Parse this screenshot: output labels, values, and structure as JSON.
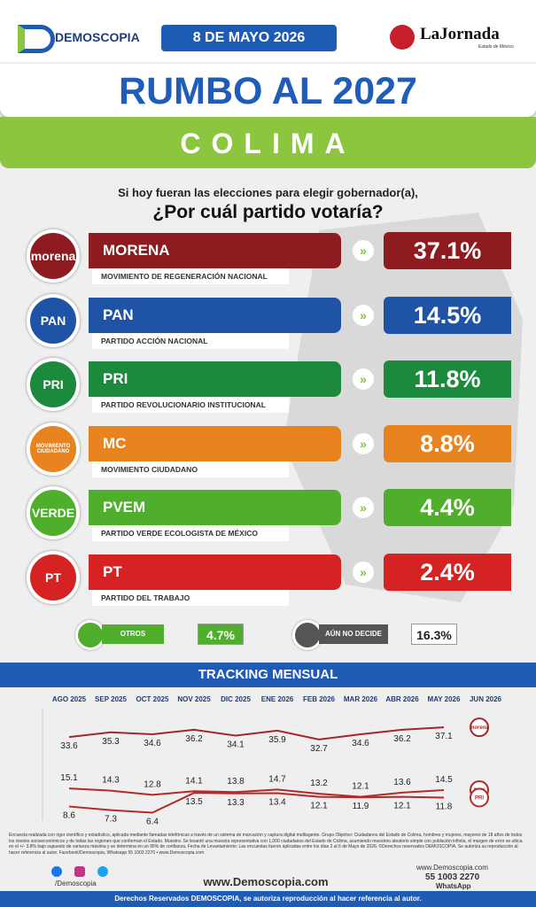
{
  "header": {
    "brand": "DEMOSCOPIA",
    "date": "8 DE MAYO 2026",
    "partner": "LaJornada",
    "partner_sub": "Estado de México",
    "title": "RUMBO AL 2027",
    "state": "COLIMA"
  },
  "question": {
    "line1": "Si hoy fueran las elecciones para elegir gobernador(a),",
    "line2": "¿Por cuál partido votaría?"
  },
  "parties": [
    {
      "logo": "morena",
      "name": "MORENA",
      "full": "MOVIMIENTO DE REGENERACIÓN NACIONAL",
      "value": 37.1,
      "value_label": "37.1%",
      "color": "#8e1b1f"
    },
    {
      "logo": "PAN",
      "name": "PAN",
      "full": "PARTIDO ACCIÓN NACIONAL",
      "value": 14.5,
      "value_label": "14.5%",
      "color": "#1f53a6"
    },
    {
      "logo": "PRI",
      "name": "PRI",
      "full": "PARTIDO REVOLUCIONARIO INSTITUCIONAL",
      "value": 11.8,
      "value_label": "11.8%",
      "color": "#1b8a3c"
    },
    {
      "logo": "MOVIMIENTO CIUDADANO",
      "name": "MC",
      "full": "MOVIMIENTO CIUDADANO",
      "value": 8.8,
      "value_label": "8.8%",
      "color": "#e8831f"
    },
    {
      "logo": "VERDE",
      "name": "PVEM",
      "full": "PARTIDO VERDE ECOLOGISTA DE MÉXICO",
      "value": 4.4,
      "value_label": "4.4%",
      "color": "#4fae2c"
    },
    {
      "logo": "PT",
      "name": "PT",
      "full": "PARTIDO DEL TRABAJO",
      "value": 2.4,
      "value_label": "2.4%",
      "color": "#d52222"
    }
  ],
  "others": [
    {
      "name": "OTROS",
      "value": 4.7,
      "value_label": "4.7%",
      "color": "#4fae2c"
    },
    {
      "name": "AÚN NO DECIDE",
      "value": 16.3,
      "value_label": "16.3%",
      "color": "#555555"
    }
  ],
  "tracking": {
    "title": "TRACKING MENSUAL",
    "categories": [
      "AGO 2025",
      "SEP 2025",
      "OCT 2025",
      "NOV 2025",
      "DIC 2025",
      "ENE 2026",
      "FEB 2026",
      "MAR 2026",
      "ABR 2026",
      "MAY 2026",
      "JUN 2026"
    ],
    "ylim": [
      4,
      40
    ],
    "series": [
      {
        "name": "morena",
        "color": "#a3262b",
        "values": [
          33.6,
          35.3,
          34.6,
          36.2,
          34.1,
          35.9,
          32.7,
          34.6,
          36.2,
          37.1,
          null
        ]
      },
      {
        "name": "PAN",
        "color": "#b32a2a",
        "values": [
          15.1,
          14.3,
          12.8,
          14.1,
          13.8,
          14.7,
          13.2,
          12.1,
          13.6,
          14.5,
          null
        ]
      },
      {
        "name": "PRI",
        "color": "#b32a2a",
        "values": [
          8.6,
          7.3,
          6.4,
          13.5,
          13.3,
          13.4,
          12.1,
          11.9,
          12.1,
          11.8,
          null
        ]
      }
    ]
  },
  "footer": {
    "disclaimer": "Encuesta realizada con rigor científico y estadístico, aplicada mediante llamadas telefónicas a través de un sistema de marcación y captura digital multiagente. Grupo Objetivo: Ciudadanos del Estado de Colima, hombres y mujeres, mayores de 18 años de todos los niveles socioeconómicos y de todas las regiones que conforman el Estado. Muestra: Se levantó una muestra representativa con 1,000 ciudadanos del Estado de Colima, asumiendo muestreo aleatorio simple con población infinita, el margen de error se ubica en el +/- 3.8% bajo supuesto de varianza máxima y se determina en un 95% de confianza. Fecha de Levantamiento: Las encuestas fueron aplicadas entre los días 2 al 6 de Mayo de 2026. ©Derechos reservados DEMOSCOPIA. Se autoriza su reproducción al hacer referencia al autor. Facebook/Demoscopia, Whatsapp 55 1003 2270 • www.Demoscopia.com",
    "social": "/Demoscopia",
    "web": "www.Demoscopia.com",
    "site": "www.Demoscopia.com",
    "phone": "55 1003 2270",
    "whatsapp": "WhatsApp",
    "rights": "Derechos Reservados DEMOSCOPIA, se autoriza reproducción al hacer referencia al autor."
  }
}
